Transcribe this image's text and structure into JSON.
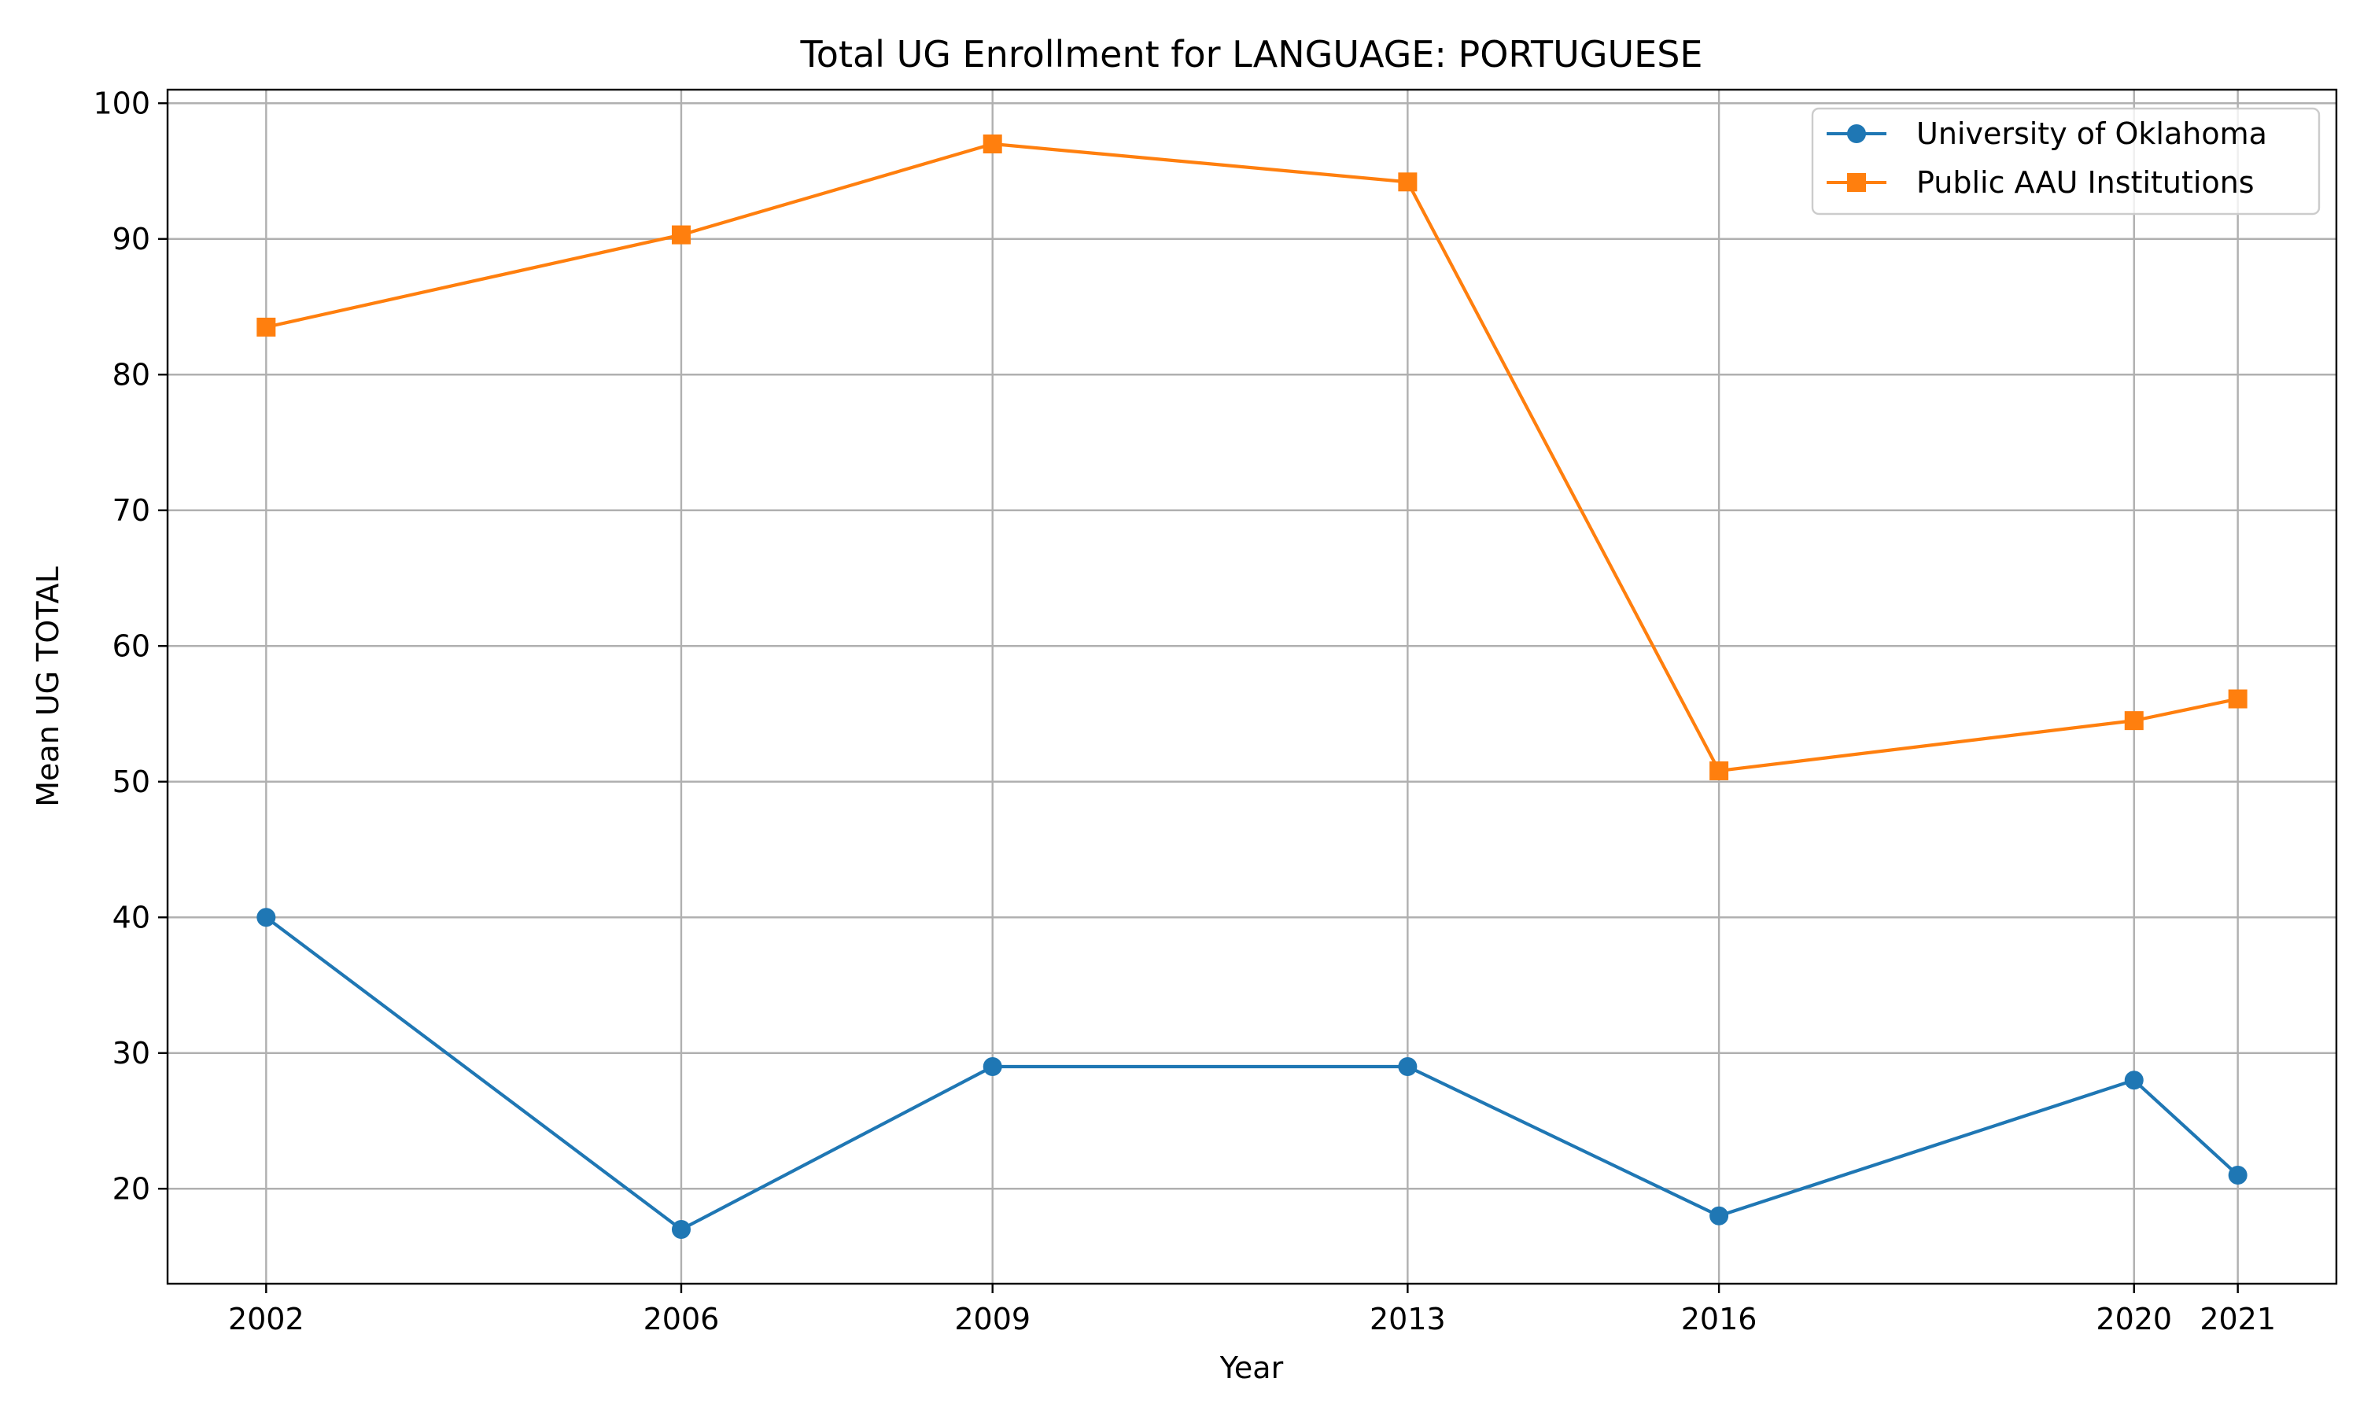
{
  "chart_data": {
    "type": "line",
    "title": "Total UG Enrollment for LANGUAGE: PORTUGUESE",
    "xlabel": "Year",
    "ylabel": "Mean UG TOTAL",
    "x": [
      2002,
      2006,
      2009,
      2013,
      2016,
      2020,
      2021
    ],
    "x_tick_labels": [
      "2002",
      "2006",
      "2009",
      "2013",
      "2016",
      "2020",
      "2021"
    ],
    "xlim": [
      2001.05,
      2021.95
    ],
    "ylim": [
      13.0,
      101.0
    ],
    "y_ticks": [
      20,
      30,
      40,
      50,
      60,
      70,
      80,
      90,
      100
    ],
    "y_tick_labels": [
      "20",
      "30",
      "40",
      "50",
      "60",
      "70",
      "80",
      "90",
      "100"
    ],
    "grid": true,
    "legend_position": "top-right",
    "series": [
      {
        "name": "University of Oklahoma",
        "color": "#1f77b4",
        "marker": "circle",
        "values": [
          40,
          17,
          29,
          29,
          18,
          28,
          21
        ]
      },
      {
        "name": "Public AAU Institutions",
        "color": "#ff7f0e",
        "marker": "square",
        "values": [
          83.5,
          90.3,
          97.0,
          94.2,
          50.8,
          54.5,
          56.1
        ]
      }
    ]
  }
}
